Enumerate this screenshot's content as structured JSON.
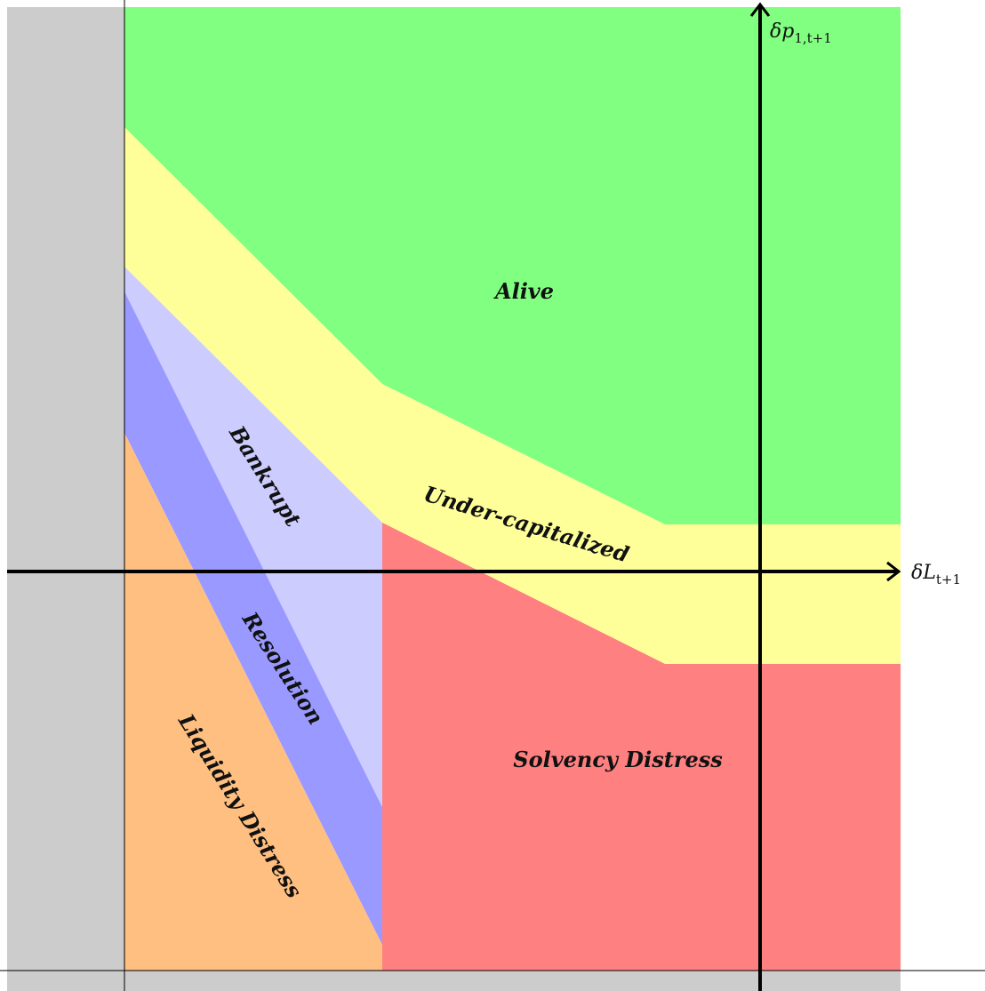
{
  "regions": {
    "alive": "Alive",
    "under_capitalized": "Under-capitalized",
    "bankrupt": "Bankrupt",
    "resolution": "Resolution",
    "liquidity_distress": "Liquidity Distress",
    "solvency_distress": "Solvency Distress"
  },
  "axes": {
    "x": {
      "symbol": "δL",
      "subscript": "t+1"
    },
    "y": {
      "symbol": "δp",
      "subscript": "1,t+1"
    }
  }
}
